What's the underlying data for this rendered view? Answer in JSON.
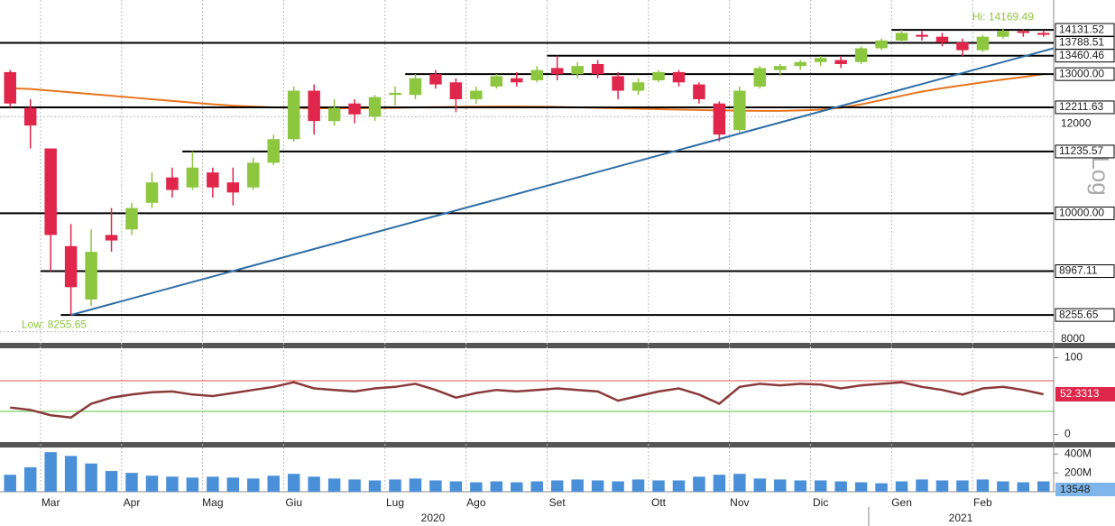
{
  "chart_data": [
    {
      "type": "candlestick",
      "categories": [
        null,
        null,
        "Mar",
        null,
        null,
        null,
        "Apr",
        null,
        null,
        null,
        "Mag",
        null,
        null,
        null,
        "Giu",
        null,
        null,
        null,
        null,
        "Lug",
        null,
        null,
        null,
        "Ago",
        null,
        null,
        null,
        "Set",
        null,
        null,
        null,
        null,
        "Ott",
        null,
        null,
        null,
        "Nov",
        null,
        null,
        null,
        "Dic",
        null,
        null,
        null,
        "Gen",
        null,
        null,
        null,
        "Feb",
        null,
        null,
        null
      ],
      "open": [
        13050,
        12200,
        11300,
        9400,
        8500,
        9600,
        9700,
        10200,
        10700,
        10500,
        10800,
        10600,
        10500,
        11000,
        11500,
        12600,
        11900,
        12300,
        12000,
        12500,
        12500,
        13000,
        12800,
        12400,
        12700,
        12900,
        12850,
        13150,
        13000,
        13250,
        12950,
        12600,
        12850,
        13050,
        12750,
        12300,
        11700,
        12700,
        13100,
        13200,
        13300,
        13350,
        13300,
        13650,
        13850,
        14000,
        13950,
        13800,
        13600,
        13950,
        14100,
        14050
      ],
      "high": [
        13100,
        12400,
        11300,
        9800,
        9700,
        10100,
        10200,
        10800,
        10900,
        11235.57,
        10900,
        10900,
        11100,
        11600,
        12700,
        12750,
        12400,
        12400,
        12500,
        12700,
        13000,
        13100,
        12900,
        12700,
        13000,
        13050,
        13200,
        13460.46,
        13300,
        13350,
        13050,
        12900,
        13100,
        13100,
        12800,
        12350,
        12700,
        13200,
        13250,
        13350,
        13450,
        13450,
        13700,
        13900,
        14131.52,
        14100,
        14050,
        13900,
        14000,
        14169.49,
        14150,
        14120
      ],
      "low": [
        12211.63,
        11300,
        8967.11,
        8255.65,
        8400,
        9300,
        9600,
        10100,
        10300,
        10450,
        10300,
        10150,
        10450,
        10950,
        11450,
        11600,
        11800,
        11850,
        11900,
        12250,
        12400,
        12650,
        12100,
        12300,
        12650,
        12700,
        12800,
        12850,
        12900,
        12900,
        12400,
        12500,
        12800,
        12700,
        12300,
        11450,
        11650,
        12650,
        12950,
        13100,
        13200,
        13150,
        13250,
        13600,
        13800,
        13850,
        13700,
        13450,
        13550,
        13900,
        13950,
        13950
      ],
      "close": [
        12300,
        11800,
        9600,
        8700,
        9300,
        9500,
        10100,
        10600,
        10450,
        10900,
        10500,
        10400,
        11000,
        11500,
        12600,
        11900,
        12200,
        12050,
        12450,
        12550,
        12900,
        12750,
        12400,
        12600,
        12950,
        12800,
        13100,
        13000,
        13200,
        13000,
        12600,
        12800,
        13050,
        12800,
        12400,
        11600,
        12600,
        13150,
        13200,
        13300,
        13400,
        13250,
        13650,
        13850,
        14050,
        13950,
        13800,
        13600,
        13950,
        14100,
        14050,
        14000
      ],
      "up_color": "#8dc63f",
      "down_color": "#e0264a",
      "ma": {
        "color": "#e8741e",
        "values": [
          12660,
          12640,
          12600,
          12560,
          12520,
          12480,
          12440,
          12400,
          12360,
          12320,
          12280,
          12250,
          12230,
          12210,
          12200,
          12190,
          12190,
          12190,
          12195,
          12200,
          12210,
          12215,
          12220,
          12225,
          12230,
          12230,
          12225,
          12220,
          12210,
          12200,
          12190,
          12180,
          12170,
          12160,
          12150,
          12140,
          12135,
          12130,
          12130,
          12140,
          12160,
          12200,
          12280,
          12380,
          12480,
          12580,
          12660,
          12730,
          12800,
          12870,
          12930,
          13000
        ]
      },
      "trendline": {
        "color": "#2e6ea6",
        "values": [
          8255.65,
          13650
        ]
      },
      "levels": [
        {
          "value": 14131.52,
          "label": "14131.52"
        },
        {
          "value": 13788.51,
          "label": "13788.51"
        },
        {
          "value": 13460.46,
          "label": "13460.46"
        },
        {
          "value": 13000,
          "label": "13000.00"
        },
        {
          "value": 12211.63,
          "label": "12211.63"
        },
        {
          "value": 11235.57,
          "label": "11235.57"
        },
        {
          "value": 10000,
          "label": "10000.00"
        },
        {
          "value": 8967.11,
          "label": "8967.11"
        },
        {
          "value": 8255.65,
          "label": "8255.65"
        }
      ],
      "ylim": [
        7860,
        14950
      ],
      "yticks": [
        8000,
        12000
      ],
      "log_scale": true,
      "grid": true,
      "axis_label": "Log",
      "annotations": {
        "high": "Hi: 14169.49",
        "low": "Low: 8255.65"
      },
      "years": [
        "2020",
        "2021"
      ]
    },
    {
      "type": "line",
      "values": [
        35,
        32,
        25,
        22,
        40,
        48,
        52,
        55,
        56,
        52,
        50,
        54,
        58,
        62,
        68,
        60,
        58,
        56,
        60,
        62,
        66,
        58,
        48,
        54,
        58,
        56,
        58,
        60,
        58,
        56,
        44,
        50,
        56,
        60,
        52,
        40,
        62,
        66,
        64,
        66,
        65,
        60,
        64,
        66,
        68,
        62,
        58,
        52,
        60,
        62,
        58,
        52.3313
      ],
      "color": "#8b3a3a",
      "ylim": [
        -10,
        110
      ],
      "yticks": [
        0,
        100
      ],
      "levels": [
        {
          "value": 70,
          "color": "#e05050"
        },
        {
          "value": 30,
          "color": "#55c040"
        }
      ]
    },
    {
      "type": "bar",
      "values": [
        180000000,
        260000000,
        420000000,
        380000000,
        300000000,
        220000000,
        200000000,
        170000000,
        160000000,
        150000000,
        160000000,
        150000000,
        140000000,
        170000000,
        190000000,
        160000000,
        140000000,
        130000000,
        120000000,
        130000000,
        140000000,
        120000000,
        110000000,
        100000000,
        110000000,
        100000000,
        110000000,
        120000000,
        130000000,
        120000000,
        110000000,
        130000000,
        120000000,
        120000000,
        160000000,
        180000000,
        190000000,
        140000000,
        130000000,
        120000000,
        120000000,
        110000000,
        100000000,
        90000000,
        110000000,
        130000000,
        120000000,
        120000000,
        130000000,
        110000000,
        100000000,
        110000000
      ],
      "color": "#4a90d9",
      "ylim": [
        0,
        460000000
      ],
      "yticks": [
        {
          "value": 200000000,
          "label": "200M"
        },
        {
          "value": 400000000,
          "label": "400M"
        }
      ],
      "last_label": "13548"
    }
  ]
}
